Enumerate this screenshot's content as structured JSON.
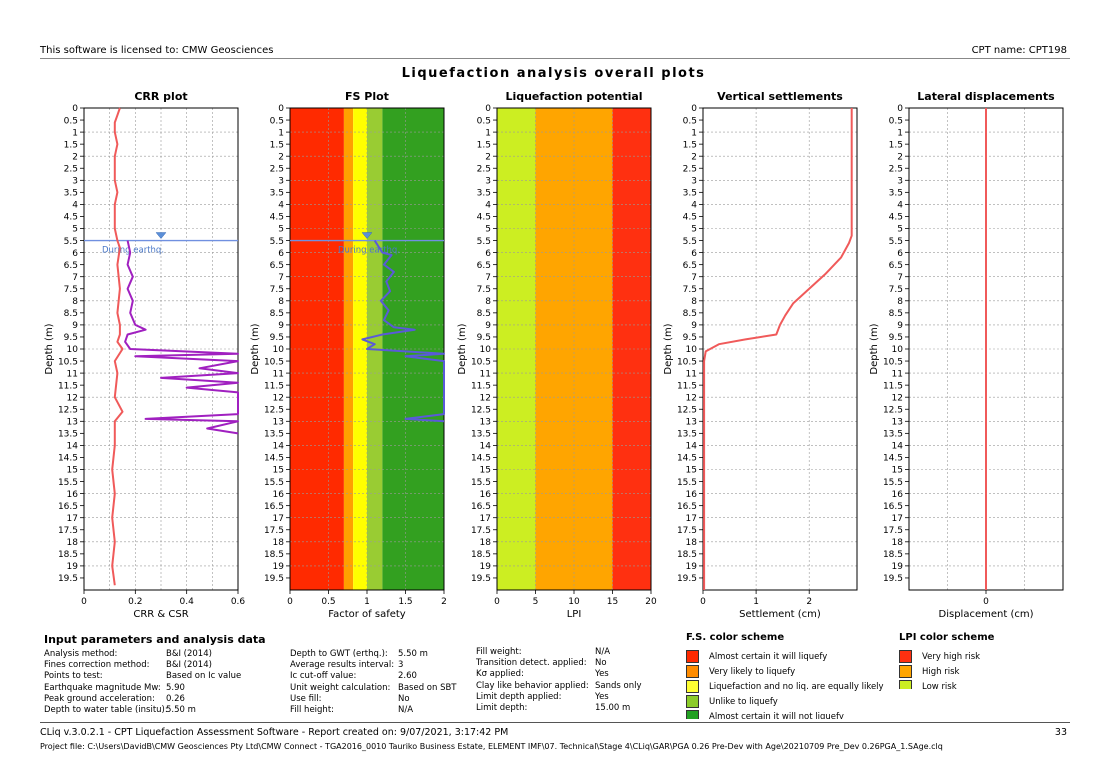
{
  "header": {
    "license": "This software is licensed to: CMW Geosciences",
    "cpt_name": "CPT name: CPT198",
    "main_title": "Liquefaction analysis overall plots"
  },
  "depth_ticks": [
    "0",
    "0.5",
    "1",
    "1.5",
    "2",
    "2.5",
    "3",
    "3.5",
    "4",
    "4.5",
    "5",
    "5.5",
    "6",
    "6.5",
    "7",
    "7.5",
    "8",
    "8.5",
    "9",
    "9.5",
    "10",
    "10.5",
    "11",
    "11.5",
    "12",
    "12.5",
    "13",
    "13.5",
    "14",
    "14.5",
    "15",
    "15.5",
    "16",
    "16.5",
    "17",
    "17.5",
    "18",
    "18.5",
    "19",
    "19.5"
  ],
  "gwt_label": "During earthq.",
  "chart_data": [
    {
      "type": "line",
      "title": "CRR plot",
      "xlabel": "CRR & CSR",
      "ylabel": "Depth (m)",
      "xlim": [
        0,
        0.6
      ],
      "ylim": [
        20,
        0
      ],
      "x_ticks": [
        "0",
        "0.2",
        "0.4",
        "0.6"
      ],
      "gwt_depth": 5.5,
      "series": [
        {
          "name": "",
          "color": "#f05a5a",
          "points": [
            [
              0.14,
              0
            ],
            [
              0.13,
              0.3
            ],
            [
              0.12,
              0.6
            ],
            [
              0.12,
              1.0
            ],
            [
              0.13,
              1.5
            ],
            [
              0.12,
              2.0
            ],
            [
              0.12,
              3.0
            ],
            [
              0.13,
              3.5
            ],
            [
              0.12,
              4.0
            ],
            [
              0.12,
              5.0
            ],
            [
              0.13,
              5.5
            ],
            [
              0.14,
              5.8
            ],
            [
              0.13,
              6.5
            ],
            [
              0.14,
              7.5
            ],
            [
              0.13,
              8.5
            ],
            [
              0.14,
              9.0
            ],
            [
              0.14,
              9.4
            ],
            [
              0.13,
              9.7
            ],
            [
              0.15,
              10.0
            ],
            [
              0.12,
              10.5
            ],
            [
              0.13,
              11.0
            ],
            [
              0.12,
              12.0
            ],
            [
              0.15,
              12.6
            ],
            [
              0.12,
              13.0
            ],
            [
              0.12,
              14.0
            ],
            [
              0.11,
              15.0
            ],
            [
              0.12,
              16.0
            ],
            [
              0.11,
              17.0
            ],
            [
              0.12,
              18.0
            ],
            [
              0.11,
              19.0
            ],
            [
              0.12,
              19.8
            ]
          ]
        },
        {
          "name": "",
          "color": "#a020c0",
          "points": [
            [
              0.17,
              5.5
            ],
            [
              0.18,
              6.0
            ],
            [
              0.17,
              6.5
            ],
            [
              0.19,
              7.0
            ],
            [
              0.17,
              7.5
            ],
            [
              0.19,
              8.0
            ],
            [
              0.18,
              8.5
            ],
            [
              0.2,
              9.0
            ],
            [
              0.24,
              9.2
            ],
            [
              0.17,
              9.4
            ],
            [
              0.16,
              9.7
            ],
            [
              0.18,
              10.0
            ],
            [
              0.6,
              10.2
            ],
            [
              0.2,
              10.3
            ],
            [
              0.6,
              10.5
            ],
            [
              0.45,
              10.8
            ],
            [
              0.6,
              11.0
            ],
            [
              0.3,
              11.2
            ],
            [
              0.6,
              11.4
            ],
            [
              0.4,
              11.6
            ],
            [
              0.6,
              11.8
            ],
            [
              0.6,
              12.7
            ],
            [
              0.24,
              12.9
            ],
            [
              0.6,
              13.0
            ],
            [
              0.48,
              13.3
            ],
            [
              0.6,
              13.5
            ]
          ]
        }
      ]
    },
    {
      "type": "line",
      "title": "FS Plot",
      "xlabel": "Factor of safety",
      "ylabel": "Depth (m)",
      "xlim": [
        0,
        2
      ],
      "ylim": [
        20,
        0
      ],
      "x_ticks": [
        "0",
        "0.5",
        "1",
        "1.5",
        "2"
      ],
      "gwt_depth": 5.5,
      "bands": [
        {
          "from": 0,
          "to": 0.7,
          "color": "#ff2a00"
        },
        {
          "from": 0.7,
          "to": 0.82,
          "color": "#ffa000"
        },
        {
          "from": 0.82,
          "to": 1.0,
          "color": "#ffff00"
        },
        {
          "from": 1.0,
          "to": 1.2,
          "color": "#99cc33"
        },
        {
          "from": 1.2,
          "to": 2.0,
          "color": "#33a020"
        }
      ],
      "series": [
        {
          "name": "",
          "color": "#5a5ad8",
          "points": [
            [
              1.1,
              5.5
            ],
            [
              1.2,
              6.0
            ],
            [
              1.32,
              6.1
            ],
            [
              1.22,
              6.5
            ],
            [
              1.35,
              6.8
            ],
            [
              1.25,
              7.2
            ],
            [
              1.3,
              7.6
            ],
            [
              1.18,
              8.0
            ],
            [
              1.28,
              8.4
            ],
            [
              1.22,
              8.8
            ],
            [
              1.35,
              9.1
            ],
            [
              1.62,
              9.2
            ],
            [
              1.2,
              9.4
            ],
            [
              0.94,
              9.6
            ],
            [
              1.1,
              9.8
            ],
            [
              1.0,
              10.0
            ],
            [
              2.0,
              10.2
            ],
            [
              1.5,
              10.3
            ],
            [
              2.0,
              10.5
            ],
            [
              2.0,
              12.7
            ],
            [
              1.5,
              12.9
            ],
            [
              2.0,
              13.0
            ]
          ]
        }
      ]
    },
    {
      "type": "area",
      "title": "Liquefaction potential",
      "xlabel": "LPI",
      "ylabel": "Depth (m)",
      "xlim": [
        0,
        20
      ],
      "ylim": [
        20,
        0
      ],
      "x_ticks": [
        "0",
        "5",
        "10",
        "15",
        "20"
      ],
      "bands": [
        {
          "from": 0,
          "to": 5,
          "color": "#ccee22"
        },
        {
          "from": 5,
          "to": 15,
          "color": "#ffa500"
        },
        {
          "from": 15,
          "to": 20,
          "color": "#ff3010"
        }
      ]
    },
    {
      "type": "line",
      "title": "Vertical settlements",
      "xlabel": "Settlement (cm)",
      "ylabel": "Depth (m)",
      "xlim": [
        0,
        2.9
      ],
      "ylim": [
        20,
        0
      ],
      "x_ticks": [
        "0",
        "1",
        "2"
      ],
      "gwt_depth": 5.5,
      "series": [
        {
          "name": "",
          "color": "#f05a5a",
          "points": [
            [
              2.8,
              0
            ],
            [
              2.8,
              5.3
            ],
            [
              2.75,
              5.6
            ],
            [
              2.6,
              6.2
            ],
            [
              2.3,
              6.9
            ],
            [
              2.0,
              7.5
            ],
            [
              1.7,
              8.1
            ],
            [
              1.55,
              8.6
            ],
            [
              1.45,
              9.0
            ],
            [
              1.38,
              9.4
            ],
            [
              0.8,
              9.6
            ],
            [
              0.3,
              9.8
            ],
            [
              0.05,
              10.1
            ],
            [
              0.02,
              10.5
            ],
            [
              0.02,
              20
            ]
          ]
        }
      ]
    },
    {
      "type": "line",
      "title": "Lateral displacements",
      "xlabel": "Displacement (cm)",
      "ylabel": "Depth (m)",
      "xlim": [
        -1,
        1
      ],
      "ylim": [
        20,
        0
      ],
      "x_ticks": [
        "0"
      ],
      "series": [
        {
          "name": "",
          "color": "#f05a5a",
          "points": [
            [
              0,
              0
            ],
            [
              0,
              20
            ]
          ]
        }
      ]
    }
  ],
  "input_parameters": {
    "title": "Input parameters and analysis data",
    "col1": [
      {
        "label": "Analysis method:",
        "value": "B&I (2014)"
      },
      {
        "label": "Fines correction method:",
        "value": "B&I (2014)"
      },
      {
        "label": "Points to test:",
        "value": "Based on Ic value"
      },
      {
        "label": "Earthquake magnitude Mw:",
        "value": "5.90"
      },
      {
        "label": "Peak ground acceleration:",
        "value": "0.26"
      },
      {
        "label": "Depth to water table (insitu):",
        "value": "5.50 m"
      }
    ],
    "col2": [
      {
        "label": "Depth to GWT (erthq.):",
        "value": "5.50 m"
      },
      {
        "label": "Average results interval:",
        "value": "3"
      },
      {
        "label": "Ic cut-off value:",
        "value": "2.60"
      },
      {
        "label": "Unit weight calculation:",
        "value": "Based on SBT"
      },
      {
        "label": "Use fill:",
        "value": "No"
      },
      {
        "label": "Fill height:",
        "value": "N/A"
      }
    ],
    "col3": [
      {
        "label": "Fill weight:",
        "value": "N/A"
      },
      {
        "label": "Transition detect. applied:",
        "value": "No"
      },
      {
        "label": "Kσ applied:",
        "value": "Yes"
      },
      {
        "label": "Clay like behavior applied:",
        "value": "Sands only"
      },
      {
        "label": "Limit depth applied:",
        "value": "Yes"
      },
      {
        "label": "Limit depth:",
        "value": "15.00 m"
      }
    ]
  },
  "fs_legend": {
    "title": "F.S. color scheme",
    "items": [
      {
        "label": "Almost certain it will liquefy",
        "color": "#ff2a00"
      },
      {
        "label": "Very likely to liquefy",
        "color": "#ff8c00"
      },
      {
        "label": "Liquefaction and no liq. are equally likely",
        "color": "#ffff33"
      },
      {
        "label": "Unlike to liquefy",
        "color": "#8ccc2a"
      },
      {
        "label": "Almost certain it will not liquefy",
        "color": "#22a022"
      }
    ]
  },
  "lpi_legend": {
    "title": "LPI color scheme",
    "items": [
      {
        "label": "Very high risk",
        "color": "#ff3010"
      },
      {
        "label": "High risk",
        "color": "#ffa500"
      },
      {
        "label": "Low risk",
        "color": "#ccee22"
      }
    ]
  },
  "footer": {
    "line1": "CLiq v.3.0.2.1 - CPT Liquefaction Assessment Software - Report created on: 9/07/2021, 3:17:42 PM",
    "page": "33",
    "line2": "Project file: C:\\Users\\DavidB\\CMW Geosciences Pty Ltd\\CMW Connect - TGA2016_0010 Tauriko Business Estate, ELEMENT IMF\\07. Technical\\Stage 4\\CLiq\\GAR\\PGA 0.26 Pre-Dev with Age\\20210709 Pre_Dev 0.26PGA_1.SAge.clq"
  }
}
